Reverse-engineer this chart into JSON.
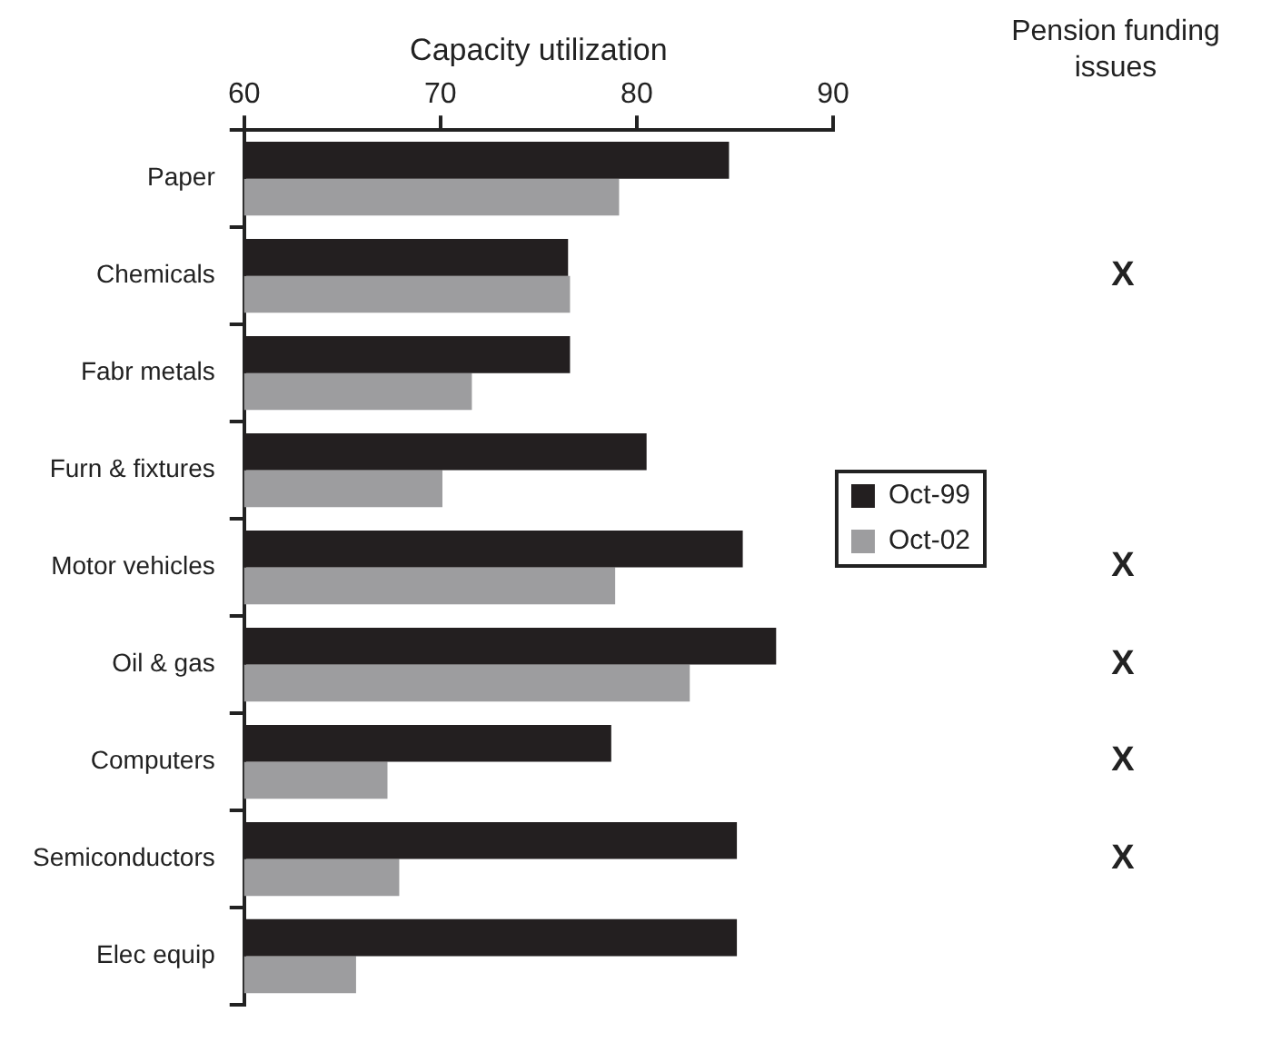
{
  "chart_data": [
    {
      "type": "bar",
      "orientation": "horizontal",
      "xlabel": "Capacity utilization",
      "categories": [
        "Paper",
        "Chemicals",
        "Fabr metals",
        "Furn & fixtures",
        "Motor vehicles",
        "Oil & gas",
        "Computers",
        "Semiconductors",
        "Elec equip"
      ],
      "series": [
        {
          "name": "Oct-99",
          "color": "#231f20",
          "values": [
            84.7,
            76.5,
            76.6,
            80.5,
            85.4,
            87.1,
            78.7,
            85.1,
            85.1
          ]
        },
        {
          "name": "Oct-02",
          "color": "#9d9d9f",
          "values": [
            79.1,
            76.6,
            71.6,
            70.1,
            78.9,
            82.7,
            67.3,
            67.9,
            65.7
          ]
        }
      ],
      "xlim": [
        60,
        90
      ],
      "xticks": [
        60,
        70,
        80,
        90
      ],
      "grid": false,
      "legend": "right"
    },
    {
      "type": "other",
      "title": "Pension funding issues",
      "categories": [
        null,
        null,
        null,
        null,
        null,
        null,
        null,
        null,
        null
      ],
      "value_labels": [
        null,
        "X",
        null,
        null,
        "X",
        "X",
        "X",
        "X",
        null
      ]
    }
  ]
}
